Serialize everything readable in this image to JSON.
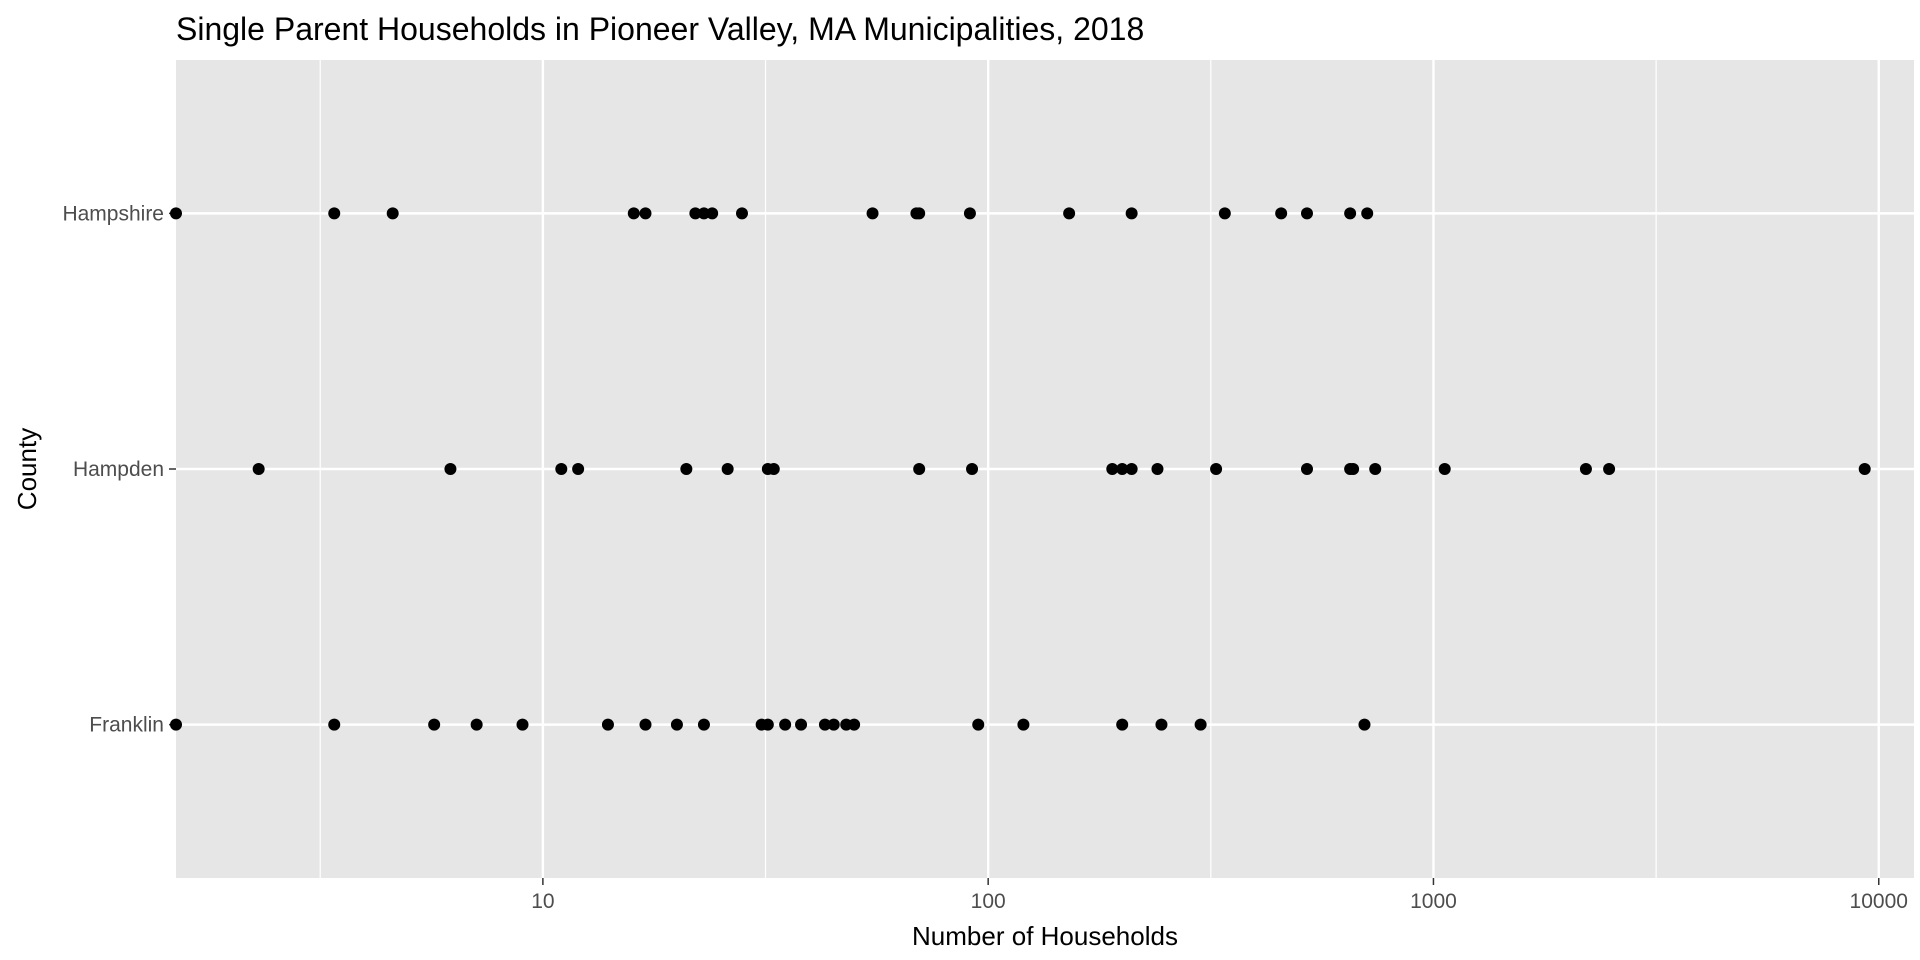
{
  "chart_data": {
    "type": "scatter",
    "title": "Single Parent Households in Pioneer Valley, MA Municipalities, 2018",
    "xlabel": "Number of Households",
    "ylabel": "County",
    "x_scale": "log10",
    "xlim": [
      1.5,
      12000
    ],
    "x_ticks": [
      10,
      100,
      1000,
      10000
    ],
    "x_tick_labels": [
      "10",
      "100",
      "1000",
      "10000"
    ],
    "categories": [
      "Franklin",
      "Hampden",
      "Hampshire"
    ],
    "grid": true,
    "background": "#e6e6e6",
    "point_color": "#000000",
    "series": [
      {
        "category": "Hampshire",
        "values": [
          1.5,
          3.4,
          4.6,
          16,
          17,
          22,
          23,
          24,
          28,
          55,
          69,
          70,
          91,
          152,
          210,
          340,
          455,
          520,
          650,
          710
        ]
      },
      {
        "category": "Hampden",
        "values": [
          2.3,
          6.2,
          11,
          12,
          21,
          26,
          32,
          33,
          70,
          92,
          190,
          200,
          210,
          240,
          325,
          520,
          650,
          660,
          740,
          1060,
          2200,
          2480,
          9300
        ]
      },
      {
        "category": "Franklin",
        "values": [
          1.5,
          3.4,
          5.7,
          7.1,
          9,
          14,
          17,
          20,
          23,
          31,
          32,
          35,
          38,
          43,
          45,
          48,
          50,
          95,
          120,
          200,
          245,
          300,
          700
        ]
      }
    ]
  }
}
